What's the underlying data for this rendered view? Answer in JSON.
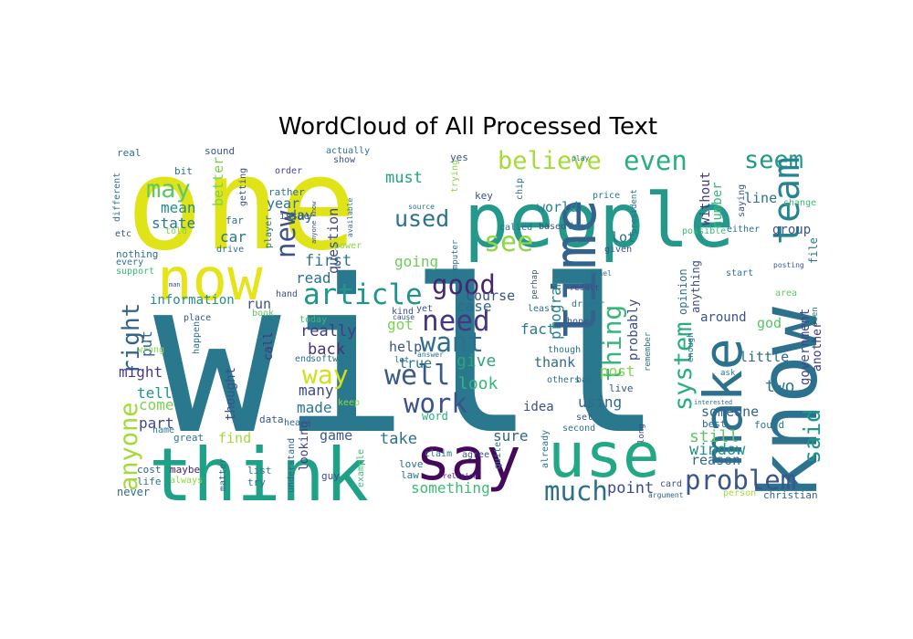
{
  "chart_data": {
    "type": "wordcloud",
    "title": "WordCloud of All Processed Text",
    "background": "#ffffff",
    "colormap": "viridis",
    "words": [
      {
        "text": "will",
        "color": "#2a788e"
      },
      {
        "text": "one",
        "color": "#dfe318"
      },
      {
        "text": "people",
        "color": "#23988b"
      },
      {
        "text": "know",
        "color": "#2c728e"
      },
      {
        "text": "think",
        "color": "#1fa187"
      },
      {
        "text": "use",
        "color": "#22a884"
      },
      {
        "text": "say",
        "color": "#46085c"
      },
      {
        "text": "make",
        "color": "#2c718e"
      },
      {
        "text": "time",
        "color": "#33638d"
      },
      {
        "text": "now",
        "color": "#e5e419"
      },
      {
        "text": "article",
        "color": "#1f968b"
      },
      {
        "text": "see",
        "color": "#8fd744"
      },
      {
        "text": "need",
        "color": "#453781"
      },
      {
        "text": "well",
        "color": "#38598c"
      },
      {
        "text": "work",
        "color": "#3b528b"
      },
      {
        "text": "want",
        "color": "#2d708e"
      },
      {
        "text": "believe",
        "color": "#a5db36"
      },
      {
        "text": "even",
        "color": "#29af7f"
      },
      {
        "text": "seem",
        "color": "#1f9a8a"
      },
      {
        "text": "team",
        "color": "#25858e"
      },
      {
        "text": "problem",
        "color": "#39558c"
      },
      {
        "text": "much",
        "color": "#2d708e"
      },
      {
        "text": "said",
        "color": "#1f968b"
      },
      {
        "text": "anyone",
        "color": "#a2da37"
      },
      {
        "text": "right",
        "color": "#33638d"
      },
      {
        "text": "may",
        "color": "#5ec962"
      },
      {
        "text": "way",
        "color": "#d0e11c"
      },
      {
        "text": "good",
        "color": "#482475"
      },
      {
        "text": "thing",
        "color": "#35b779"
      },
      {
        "text": "system",
        "color": "#27ad81"
      },
      {
        "text": "used",
        "color": "#2c718e"
      },
      {
        "text": "new",
        "color": "#3b528b"
      },
      {
        "text": "window",
        "color": "#21908d"
      },
      {
        "text": "still",
        "color": "#5ec962"
      },
      {
        "text": "look",
        "color": "#35b779"
      },
      {
        "text": "something",
        "color": "#3bbb75"
      },
      {
        "text": "point",
        "color": "#3e4a89"
      },
      {
        "text": "back",
        "color": "#46327e"
      },
      {
        "text": "really",
        "color": "#443983"
      },
      {
        "text": "give",
        "color": "#2ea37e"
      },
      {
        "text": "two",
        "color": "#2a778e"
      },
      {
        "text": "first",
        "color": "#2a788e"
      },
      {
        "text": "post",
        "color": "#86d549"
      },
      {
        "text": "using",
        "color": "#306a8e"
      },
      {
        "text": "must",
        "color": "#20a386"
      },
      {
        "text": "mean",
        "color": "#228c8d"
      },
      {
        "text": "state",
        "color": "#2a788e"
      },
      {
        "text": "better",
        "color": "#7ad151"
      },
      {
        "text": "case",
        "color": "#31688e"
      },
      {
        "text": "course",
        "color": "#3b528b"
      },
      {
        "text": "fact",
        "color": "#297a8e"
      },
      {
        "text": "help",
        "color": "#3a548c"
      },
      {
        "text": "got",
        "color": "#7ad151"
      },
      {
        "text": "true",
        "color": "#2a778e"
      },
      {
        "text": "take",
        "color": "#2c728e"
      },
      {
        "text": "sure",
        "color": "#33638d"
      },
      {
        "text": "made",
        "color": "#2a788e"
      },
      {
        "text": "many",
        "color": "#3e4989"
      },
      {
        "text": "tell",
        "color": "#21918c"
      },
      {
        "text": "come",
        "color": "#7ad151"
      },
      {
        "text": "part",
        "color": "#3f4788"
      },
      {
        "text": "might",
        "color": "#443983"
      },
      {
        "text": "put",
        "color": "#31688e"
      },
      {
        "text": "information",
        "color": "#218f8d"
      },
      {
        "text": "run",
        "color": "#39558c"
      },
      {
        "text": "read",
        "color": "#2c718e"
      },
      {
        "text": "going",
        "color": "#6ccd5a"
      },
      {
        "text": "question",
        "color": "#3f4889"
      },
      {
        "text": "year",
        "color": "#2c728e"
      },
      {
        "text": "day",
        "color": "#306a8e"
      },
      {
        "text": "car",
        "color": "#2a768e"
      },
      {
        "text": "program",
        "color": "#25838e"
      },
      {
        "text": "probably",
        "color": "#3e4a89"
      },
      {
        "text": "lot",
        "color": "#2c728e"
      },
      {
        "text": "world",
        "color": "#26828e"
      },
      {
        "text": "number",
        "color": "#35b779"
      },
      {
        "text": "line",
        "color": "#2b748e"
      },
      {
        "text": "group",
        "color": "#3b528b"
      },
      {
        "text": "without",
        "color": "#453781"
      },
      {
        "text": "around",
        "color": "#3b528b"
      },
      {
        "text": "god",
        "color": "#56c667"
      },
      {
        "text": "little",
        "color": "#306a8e"
      },
      {
        "text": "government",
        "color": "#3f4788"
      },
      {
        "text": "another",
        "color": "#443983"
      },
      {
        "text": "someone",
        "color": "#33638d"
      },
      {
        "text": "reason",
        "color": "#31688e"
      },
      {
        "text": "thank",
        "color": "#306a8e"
      },
      {
        "text": "idea",
        "color": "#3b528b"
      },
      {
        "text": "find",
        "color": "#a0da39"
      },
      {
        "text": "game",
        "color": "#38598c"
      },
      {
        "text": "thought",
        "color": "#3b528b"
      },
      {
        "text": "looking",
        "color": "#433e85"
      },
      {
        "text": "opinion",
        "color": "#2c718e"
      },
      {
        "text": "anything",
        "color": "#3e4a89"
      },
      {
        "text": "call",
        "color": "#46327e"
      },
      {
        "text": "file",
        "color": "#2a788e"
      },
      {
        "text": "word",
        "color": "#27ad81"
      },
      {
        "text": "live",
        "color": "#3a548c"
      },
      {
        "text": "best",
        "color": "#31668e"
      },
      {
        "text": "found",
        "color": "#2a768e"
      },
      {
        "text": "christian",
        "color": "#32658e"
      },
      {
        "text": "card",
        "color": "#3b528b"
      },
      {
        "text": "person",
        "color": "#a5db36"
      },
      {
        "text": "argument",
        "color": "#33638d"
      },
      {
        "text": "never",
        "color": "#306a8e"
      },
      {
        "text": "life",
        "color": "#2b748e"
      },
      {
        "text": "cost",
        "color": "#33638d"
      },
      {
        "text": "maybe",
        "color": "#482173"
      },
      {
        "text": "always",
        "color": "#8bd646"
      },
      {
        "text": "name",
        "color": "#297a8e"
      },
      {
        "text": "great",
        "color": "#2a788e"
      },
      {
        "text": "matter",
        "color": "#33638d"
      },
      {
        "text": "list",
        "color": "#2b748e"
      },
      {
        "text": "try",
        "color": "#2d708e"
      },
      {
        "text": "data",
        "color": "#3a548c"
      },
      {
        "text": "heard",
        "color": "#33638d"
      },
      {
        "text": "guy",
        "color": "#3e4a89"
      },
      {
        "text": "understand",
        "color": "#33638d"
      },
      {
        "text": "example",
        "color": "#3bbb75"
      },
      {
        "text": "quite",
        "color": "#2c728e"
      },
      {
        "text": "already",
        "color": "#2b748e"
      },
      {
        "text": "long",
        "color": "#3e4989"
      },
      {
        "text": "love",
        "color": "#2d708e"
      },
      {
        "text": "law",
        "color": "#2c728e"
      },
      {
        "text": "claim",
        "color": "#2a788e"
      },
      {
        "text": "agree",
        "color": "#3a548c"
      },
      {
        "text": "religion",
        "color": "#482878"
      },
      {
        "text": "set",
        "color": "#3b528b"
      },
      {
        "text": "second",
        "color": "#2c718e"
      },
      {
        "text": "bad",
        "color": "#2d708e"
      },
      {
        "text": "others",
        "color": "#2c718e"
      },
      {
        "text": "though",
        "color": "#2c718e"
      },
      {
        "text": "remember",
        "color": "#2c718e"
      },
      {
        "text": "hope",
        "color": "#3a548c"
      },
      {
        "text": "least",
        "color": "#2c728e"
      },
      {
        "text": "driver",
        "color": "#2c718e"
      },
      {
        "text": "result",
        "color": "#3e4a89"
      },
      {
        "text": "israel",
        "color": "#2d708e"
      },
      {
        "text": "perhap",
        "color": "#3a548c"
      },
      {
        "text": "computer",
        "color": "#2c718e"
      },
      {
        "text": "based",
        "color": "#3b528b"
      },
      {
        "text": "done",
        "color": "#2c728e"
      },
      {
        "text": "called",
        "color": "#2c718e"
      },
      {
        "text": "given",
        "color": "#3b528b"
      },
      {
        "text": "possible",
        "color": "#3bbb75"
      },
      {
        "text": "either",
        "color": "#2c728e"
      },
      {
        "text": "start",
        "color": "#2c718e"
      },
      {
        "text": "posting",
        "color": "#3b528b"
      },
      {
        "text": "area",
        "color": "#5ec962"
      },
      {
        "text": "seen",
        "color": "#2c728e"
      },
      {
        "text": "change",
        "color": "#3bbb75"
      },
      {
        "text": "saying",
        "color": "#3b528b"
      },
      {
        "text": "president",
        "color": "#2c718e"
      },
      {
        "text": "price",
        "color": "#2c728e"
      },
      {
        "text": "key",
        "color": "#3b528b"
      },
      {
        "text": "chip",
        "color": "#2c718e"
      },
      {
        "text": "trying",
        "color": "#86d549"
      },
      {
        "text": "yes",
        "color": "#3b528b"
      },
      {
        "text": "play",
        "color": "#2c718e"
      },
      {
        "text": "source",
        "color": "#2c728e"
      },
      {
        "text": "issue",
        "color": "#3b528b"
      },
      {
        "text": "anyone know",
        "color": "#3e4a89"
      },
      {
        "text": "available",
        "color": "#2c718e"
      },
      {
        "text": "power",
        "color": "#86d549"
      },
      {
        "text": "show",
        "color": "#3b528b"
      },
      {
        "text": "actually",
        "color": "#2c728e"
      },
      {
        "text": "order",
        "color": "#3e4a89"
      },
      {
        "text": "rather",
        "color": "#2c718e"
      },
      {
        "text": "getting",
        "color": "#3e4a89"
      },
      {
        "text": "far",
        "color": "#2c728e"
      },
      {
        "text": "told",
        "color": "#86d549"
      },
      {
        "text": "drive",
        "color": "#2c718e"
      },
      {
        "text": "player",
        "color": "#2c728e"
      },
      {
        "text": "bit",
        "color": "#2c718e"
      },
      {
        "text": "sound",
        "color": "#3b528b"
      },
      {
        "text": "real",
        "color": "#2c718e"
      },
      {
        "text": "different",
        "color": "#2c728e"
      },
      {
        "text": "etc",
        "color": "#3b528b"
      },
      {
        "text": "nothing",
        "color": "#2c718e"
      },
      {
        "text": "every",
        "color": "#2c728e"
      },
      {
        "text": "support",
        "color": "#3bbb75"
      },
      {
        "text": "man",
        "color": "#3b528b"
      },
      {
        "text": "place",
        "color": "#3b528b"
      },
      {
        "text": "happen",
        "color": "#2c718e"
      },
      {
        "text": "wrong",
        "color": "#86d549"
      },
      {
        "text": "book",
        "color": "#5ec962"
      },
      {
        "text": "today",
        "color": "#3bbb75"
      },
      {
        "text": "hand",
        "color": "#3b528b"
      },
      {
        "text": "end",
        "color": "#2c718e"
      },
      {
        "text": "software",
        "color": "#2c728e"
      },
      {
        "text": "keep",
        "color": "#8bd646"
      },
      {
        "text": "interested",
        "color": "#2c718e"
      },
      {
        "text": "ask",
        "color": "#2c728e"
      },
      {
        "text": "enough",
        "color": "#2c718e"
      },
      {
        "text": "yet",
        "color": "#3b528b"
      },
      {
        "text": "answer",
        "color": "#2c718e"
      },
      {
        "text": "let",
        "color": "#2c728e"
      },
      {
        "text": "cause",
        "color": "#3b528b"
      },
      {
        "text": "kind",
        "color": "#3b528b"
      }
    ]
  }
}
